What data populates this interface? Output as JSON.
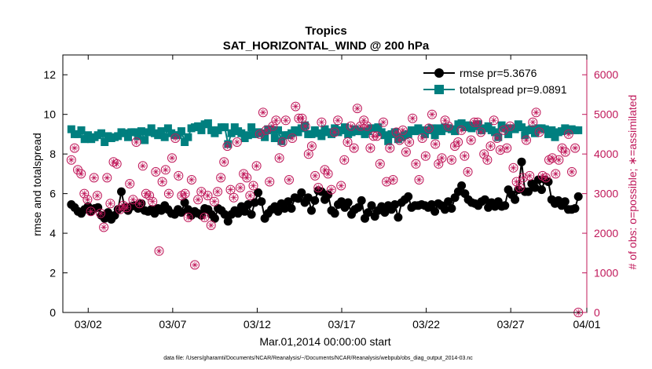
{
  "chart_data": {
    "type": "line",
    "title": "Tropics",
    "subtitle": "SAT_HORIZONTAL_WIND @ 200 hPa",
    "xlabel": "Mar.01,2014 00:00:00 start",
    "ylabel": "rmse and totalspread",
    "ylabel_right": "# of obs: o=possible; ∗=assimilated",
    "footnote": "data file: /Users/gharamti/Documents/NCAR/Reanalysis/~/Documents/NCAR/Reanalysis/webpub/obs_diag_output_2014-03.nc",
    "xlim": [
      0.5,
      31.5
    ],
    "ylim": [
      0,
      13
    ],
    "ylim_right": [
      0,
      6500
    ],
    "x_ticks": [
      {
        "value": 2,
        "label": "03/02"
      },
      {
        "value": 7,
        "label": "03/07"
      },
      {
        "value": 12,
        "label": "03/12"
      },
      {
        "value": 17,
        "label": "03/17"
      },
      {
        "value": 22,
        "label": "03/22"
      },
      {
        "value": 27,
        "label": "03/27"
      },
      {
        "value": 32,
        "label": "04/01"
      }
    ],
    "y_ticks": [
      0,
      2,
      4,
      6,
      8,
      10,
      12
    ],
    "y_ticks_right": [
      0,
      1000,
      2000,
      3000,
      4000,
      5000,
      6000
    ],
    "series": [
      {
        "name": "rmse pr=5.3676",
        "color": "#000000",
        "marker": "circle",
        "values": [
          5.45,
          5.3,
          5.1,
          5.0,
          5.2,
          5.35,
          5.1,
          5.25,
          5.3,
          4.9,
          4.75,
          5.05,
          4.7,
          4.9,
          5.2,
          6.1,
          5.3,
          5.15,
          5.35,
          5.4,
          5.25,
          5.5,
          5.15,
          5.1,
          5.2,
          5.0,
          5.25,
          5.15,
          5.4,
          5.2,
          5.0,
          4.95,
          5.2,
          5.05,
          5.55,
          5.2,
          4.9,
          5.1,
          5.0,
          4.9,
          5.25,
          5.2,
          4.95,
          4.75,
          5.25,
          5.15,
          4.95,
          4.6,
          4.95,
          5.15,
          5.0,
          5.35,
          5.1,
          5.45,
          4.95,
          5.55,
          6.05,
          5.6,
          4.75,
          5.0,
          5.2,
          5.35,
          5.1,
          5.5,
          5.25,
          5.6,
          5.25,
          5.8,
          5.75,
          6.05,
          5.55,
          5.8,
          5.15,
          5.65,
          6.15,
          6.1,
          5.7,
          5.95,
          5.15,
          5.0,
          5.45,
          5.6,
          5.3,
          5.55,
          4.95,
          5.2,
          5.3,
          5.65,
          4.75,
          5.05,
          5.4,
          4.85,
          5.15,
          5.35,
          5.05,
          5.4,
          5.2,
          5.45,
          4.8,
          5.55,
          5.7,
          5.85,
          5.3,
          5.4,
          5.4,
          5.45,
          5.4,
          5.3,
          5.45,
          5.1,
          5.5,
          5.4,
          5.2,
          5.6,
          5.25,
          5.8,
          6.1,
          6.4,
          6.0,
          5.7,
          5.55,
          5.5,
          5.4,
          5.6,
          5.7,
          5.3,
          5.55,
          5.35,
          5.6,
          5.35,
          5.4,
          6.2,
          5.95,
          5.7,
          6.2,
          7.6,
          6.1,
          6.1,
          6.5,
          6.3,
          6.7,
          6.2,
          6.7,
          6.6,
          5.7,
          5.5,
          5.65,
          5.4,
          5.6,
          5.2,
          5.2,
          5.25,
          5.85
        ]
      },
      {
        "name": "totalspread pr=9.0891",
        "color": "#007f7f",
        "marker": "square",
        "values": [
          9.25,
          9.0,
          9.0,
          9.2,
          8.75,
          8.95,
          8.75,
          8.85,
          8.95,
          9.05,
          8.6,
          8.9,
          8.8,
          8.85,
          8.9,
          9.1,
          9.05,
          8.85,
          9.1,
          9.1,
          8.9,
          9.15,
          8.7,
          9.1,
          9.3,
          9.05,
          8.95,
          9.15,
          8.85,
          9.3,
          9.05,
          8.95,
          8.95,
          9.15,
          8.6,
          8.85,
          9.3,
          9.35,
          9.4,
          9.2,
          9.5,
          9.55,
          9.2,
          9.05,
          9.2,
          9.35,
          9.35,
          8.5,
          9.05,
          9.35,
          9.15,
          9.05,
          8.8,
          8.95,
          9.35,
          9.0,
          9.1,
          9.05,
          8.85,
          9.25,
          9.2,
          8.8,
          9.2,
          8.65,
          8.95,
          8.95,
          9.05,
          9.2,
          9.1,
          9.3,
          9.45,
          9.0,
          9.0,
          9.2,
          9.05,
          8.9,
          9.25,
          9.1,
          9.0,
          9.3,
          9.1,
          9.2,
          9.35,
          9.0,
          9.1,
          9.25,
          9.15,
          9.15,
          9.0,
          9.15,
          9.3,
          9.3,
          9.35,
          9.1,
          8.95,
          8.65,
          9.0,
          9.1,
          8.75,
          8.85,
          8.95,
          9.0,
          9.2,
          9.15,
          9.3,
          9.2,
          9.0,
          9.2,
          9.3,
          8.95,
          9.3,
          9.15,
          9.35,
          9.3,
          9.25,
          9.15,
          9.5,
          9.55,
          9.35,
          9.45,
          9.3,
          9.4,
          9.5,
          9.2,
          9.3,
          9.4,
          9.2,
          9.1,
          8.85,
          9.45,
          9.3,
          9.0,
          9.3,
          9.25,
          9.5,
          9.35,
          8.95,
          9.2,
          9.25,
          9.05,
          9.3,
          9.3,
          9.25,
          9.0,
          9.2,
          8.85,
          9.1,
          9.15,
          9.3,
          9.2,
          9.25,
          9.2,
          9.2
        ]
      }
    ],
    "obs": [
      3850,
      4150,
      3600,
      3500,
      3000,
      2850,
      2550,
      3400,
      2950,
      2500,
      2150,
      3400,
      2750,
      3800,
      3750,
      2600,
      2700,
      2650,
      3250,
      2850,
      4300,
      2750,
      3700,
      3000,
      2950,
      2800,
      3550,
      1550,
      3300,
      3600,
      3000,
      3900,
      4400,
      3450,
      2950,
      3000,
      2400,
      3350,
      1200,
      2850,
      3050,
      2400,
      2950,
      2200,
      2800,
      3050,
      3400,
      3800,
      4200,
      3100,
      2900,
      4300,
      3150,
      3500,
      3400,
      2950,
      3200,
      3700,
      4500,
      5050,
      4600,
      3300,
      4700,
      4850,
      3900,
      4300,
      4850,
      3350,
      4400,
      5200,
      4900,
      4900,
      4700,
      4000,
      4200,
      3450,
      3150,
      4800,
      3600,
      3500,
      3100,
      4550,
      4850,
      3200,
      3850,
      4300,
      4700,
      4150,
      5150,
      4700,
      4850,
      4700,
      4150,
      4450,
      4450,
      3750,
      4800,
      3300,
      4150,
      3350,
      4550,
      4350,
      4600,
      4050,
      4300,
      4900,
      3750,
      3350,
      4400,
      3950,
      4650,
      5000,
      4250,
      3750,
      3900,
      4850,
      4700,
      3850,
      4200,
      4300,
      4600,
      3950,
      3550,
      4350,
      4800,
      4800,
      4550,
      4000,
      3850,
      4200,
      4850,
      4400,
      4100,
      4600,
      4150,
      4700,
      3650,
      3300,
      3150,
      3400,
      4350,
      3450,
      4800,
      5050,
      4550,
      3450,
      3400,
      3850,
      3900,
      3500,
      3850,
      4150,
      4050,
      4500,
      3550,
      4150,
      0
    ]
  }
}
